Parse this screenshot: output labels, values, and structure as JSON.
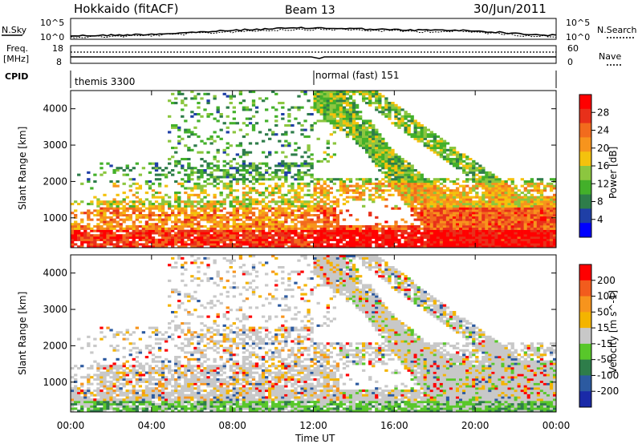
{
  "header": {
    "station": "Hokkaido (fitACF)",
    "beam": "Beam 13",
    "date": "30/Jun/2011"
  },
  "top_panel": {
    "left_label": "N.Sky",
    "left_ticks": [
      "10^5",
      "10^0"
    ],
    "right_label": "N.Search",
    "right_ticks": [
      "10^5",
      "10^0"
    ]
  },
  "freq_panel": {
    "left_label_1": "Freq.",
    "left_label_2": "[MHz]",
    "left_ticks": [
      "18",
      "8"
    ],
    "right_label": "Nave",
    "right_ticks": [
      "60",
      "0"
    ]
  },
  "cpid_panel": {
    "label": "CPID",
    "mode_1": "themis 3300",
    "mode_2": "normal (fast) 151"
  },
  "chart_data": [
    {
      "type": "heatmap",
      "title": "Power",
      "ylabel": "Slant Range [km]",
      "xlabel": "Time UT",
      "x_ticks": [
        "00:00",
        "04:00",
        "08:00",
        "12:00",
        "16:00",
        "20:00",
        "00:00"
      ],
      "y_ticks": [
        "1000",
        "2000",
        "3000",
        "4000"
      ],
      "ylim": [
        180,
        4500
      ],
      "colorbar_label": "Power [dB]",
      "colorbar_ticks": [
        "4",
        "8",
        "12",
        "16",
        "20",
        "24",
        "28"
      ],
      "colorbar_colors": [
        "#0000ff",
        "#1f3fa6",
        "#2e7d4a",
        "#43b02a",
        "#8cc63f",
        "#f4c20d",
        "#f7941d",
        "#f26b1d",
        "#e8301a",
        "#ff0000"
      ]
    },
    {
      "type": "heatmap",
      "title": "Velocity",
      "ylabel": "Slant Range [km]",
      "xlabel": "Time UT",
      "x_ticks": [
        "00:00",
        "04:00",
        "08:00",
        "12:00",
        "16:00",
        "20:00",
        "00:00"
      ],
      "y_ticks": [
        "1000",
        "2000",
        "3000",
        "4000"
      ],
      "ylim": [
        180,
        4500
      ],
      "colorbar_label": "Velocity [m s^-1]",
      "colorbar_ticks": [
        "200",
        "100",
        "50",
        "15",
        "-15",
        "-50",
        "-100",
        "-200"
      ],
      "colorbar_colors": [
        "#1a2aa8",
        "#2c5aa0",
        "#2e7d4a",
        "#58c72a",
        "#c8c8c8",
        "#f4b400",
        "#f7941d",
        "#f25c1d",
        "#ff0000"
      ]
    }
  ],
  "colors": {
    "axis": "#000000",
    "background": "#ffffff"
  }
}
